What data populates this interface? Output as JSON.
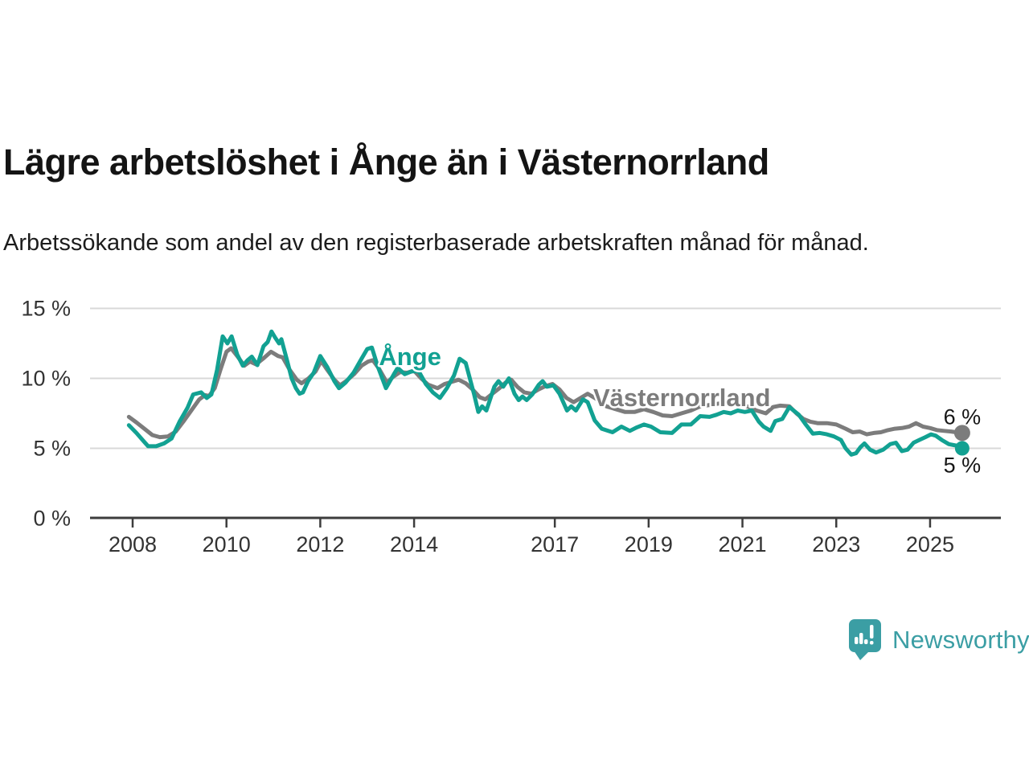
{
  "header": {},
  "footer": {
    "brand": "Newsworthy",
    "brand_color": "#3b9ea4"
  },
  "chart_data": {
    "type": "line",
    "title": "Lägre arbetslöshet i Ånge än i Västernorrland",
    "subtitle": "Arbetssökande som andel av den registerbaserade arbetskraften månad för månad.",
    "xlabel": "",
    "ylabel": "",
    "unit": "%",
    "grid": "horizontal",
    "legend_position": "inline-labels",
    "xlim": [
      2007.1,
      2026.5
    ],
    "ylim": [
      0,
      15
    ],
    "x_ticks": [
      {
        "value": 2008,
        "label": "2008"
      },
      {
        "value": 2010,
        "label": "2010"
      },
      {
        "value": 2012,
        "label": "2012"
      },
      {
        "value": 2014,
        "label": "2014"
      },
      {
        "value": 2017,
        "label": "2017"
      },
      {
        "value": 2019,
        "label": "2019"
      },
      {
        "value": 2021,
        "label": "2021"
      },
      {
        "value": 2023,
        "label": "2023"
      },
      {
        "value": 2025,
        "label": "2025"
      }
    ],
    "y_ticks": [
      {
        "value": 0,
        "label": "0 %"
      },
      {
        "value": 5,
        "label": "5 %"
      },
      {
        "value": 10,
        "label": "10 %"
      },
      {
        "value": 15,
        "label": "15 %"
      }
    ],
    "series": [
      {
        "name": "Ånge",
        "color": "#12a192",
        "line_width": 5,
        "end_dot": true,
        "end_dot_radius": 9,
        "label": {
          "text": "Ånge",
          "x": 2013.25,
          "y": 11.55,
          "anchor": "start"
        },
        "end_label": {
          "text": "5 %",
          "dy": 21
        },
        "points": [
          [
            2007.92,
            6.65
          ],
          [
            2008.08,
            6.1
          ],
          [
            2008.25,
            5.45
          ],
          [
            2008.33,
            5.15
          ],
          [
            2008.5,
            5.15
          ],
          [
            2008.67,
            5.35
          ],
          [
            2008.83,
            5.7
          ],
          [
            2009.0,
            6.9
          ],
          [
            2009.17,
            7.9
          ],
          [
            2009.29,
            8.85
          ],
          [
            2009.46,
            9.0
          ],
          [
            2009.58,
            8.6
          ],
          [
            2009.68,
            8.85
          ],
          [
            2009.8,
            10.6
          ],
          [
            2009.92,
            13.0
          ],
          [
            2010.02,
            12.5
          ],
          [
            2010.11,
            13.0
          ],
          [
            2010.23,
            11.7
          ],
          [
            2010.35,
            10.9
          ],
          [
            2010.45,
            11.3
          ],
          [
            2010.54,
            11.55
          ],
          [
            2010.66,
            10.95
          ],
          [
            2010.79,
            12.3
          ],
          [
            2010.88,
            12.6
          ],
          [
            2010.96,
            13.35
          ],
          [
            2011.04,
            12.9
          ],
          [
            2011.12,
            12.5
          ],
          [
            2011.17,
            12.8
          ],
          [
            2011.29,
            11.3
          ],
          [
            2011.39,
            10.0
          ],
          [
            2011.48,
            9.3
          ],
          [
            2011.56,
            8.9
          ],
          [
            2011.63,
            9.0
          ],
          [
            2011.74,
            9.8
          ],
          [
            2011.86,
            10.4
          ],
          [
            2012.0,
            11.6
          ],
          [
            2012.15,
            10.8
          ],
          [
            2012.3,
            9.8
          ],
          [
            2012.4,
            9.3
          ],
          [
            2012.54,
            9.7
          ],
          [
            2012.71,
            10.4
          ],
          [
            2012.88,
            11.4
          ],
          [
            2013.0,
            12.1
          ],
          [
            2013.1,
            12.2
          ],
          [
            2013.22,
            10.9
          ],
          [
            2013.4,
            9.3
          ],
          [
            2013.57,
            10.3
          ],
          [
            2013.65,
            10.75
          ],
          [
            2013.8,
            10.3
          ],
          [
            2013.95,
            10.5
          ],
          [
            2014.1,
            10.5
          ],
          [
            2014.25,
            9.6
          ],
          [
            2014.4,
            9.0
          ],
          [
            2014.55,
            8.6
          ],
          [
            2014.7,
            9.3
          ],
          [
            2014.85,
            10.2
          ],
          [
            2014.97,
            11.4
          ],
          [
            2015.1,
            11.1
          ],
          [
            2015.28,
            8.85
          ],
          [
            2015.37,
            7.6
          ],
          [
            2015.45,
            8.0
          ],
          [
            2015.54,
            7.7
          ],
          [
            2015.71,
            9.4
          ],
          [
            2015.8,
            9.8
          ],
          [
            2015.9,
            9.4
          ],
          [
            2016.02,
            10.0
          ],
          [
            2016.14,
            8.9
          ],
          [
            2016.23,
            8.45
          ],
          [
            2016.31,
            8.7
          ],
          [
            2016.4,
            8.45
          ],
          [
            2016.52,
            8.85
          ],
          [
            2016.66,
            9.55
          ],
          [
            2016.74,
            9.8
          ],
          [
            2016.83,
            9.4
          ],
          [
            2016.97,
            9.5
          ],
          [
            2017.1,
            8.9
          ],
          [
            2017.26,
            7.7
          ],
          [
            2017.35,
            8.0
          ],
          [
            2017.45,
            7.7
          ],
          [
            2017.6,
            8.5
          ],
          [
            2017.7,
            8.3
          ],
          [
            2017.85,
            7.0
          ],
          [
            2018.0,
            6.4
          ],
          [
            2018.23,
            6.15
          ],
          [
            2018.42,
            6.55
          ],
          [
            2018.6,
            6.25
          ],
          [
            2018.75,
            6.5
          ],
          [
            2018.9,
            6.7
          ],
          [
            2019.05,
            6.55
          ],
          [
            2019.25,
            6.15
          ],
          [
            2019.5,
            6.1
          ],
          [
            2019.7,
            6.7
          ],
          [
            2019.9,
            6.7
          ],
          [
            2020.1,
            7.3
          ],
          [
            2020.3,
            7.25
          ],
          [
            2020.45,
            7.4
          ],
          [
            2020.6,
            7.6
          ],
          [
            2020.75,
            7.5
          ],
          [
            2020.9,
            7.7
          ],
          [
            2021.05,
            7.6
          ],
          [
            2021.2,
            7.7
          ],
          [
            2021.35,
            6.9
          ],
          [
            2021.45,
            6.55
          ],
          [
            2021.6,
            6.25
          ],
          [
            2021.7,
            6.95
          ],
          [
            2021.85,
            7.1
          ],
          [
            2022.0,
            7.95
          ],
          [
            2022.2,
            7.4
          ],
          [
            2022.35,
            6.7
          ],
          [
            2022.5,
            6.05
          ],
          [
            2022.65,
            6.1
          ],
          [
            2022.8,
            6.0
          ],
          [
            2022.95,
            5.85
          ],
          [
            2023.1,
            5.6
          ],
          [
            2023.2,
            5.0
          ],
          [
            2023.32,
            4.55
          ],
          [
            2023.42,
            4.65
          ],
          [
            2023.52,
            5.1
          ],
          [
            2023.6,
            5.35
          ],
          [
            2023.72,
            4.9
          ],
          [
            2023.85,
            4.7
          ],
          [
            2024.0,
            4.9
          ],
          [
            2024.15,
            5.3
          ],
          [
            2024.27,
            5.4
          ],
          [
            2024.4,
            4.8
          ],
          [
            2024.52,
            4.9
          ],
          [
            2024.65,
            5.4
          ],
          [
            2024.77,
            5.6
          ],
          [
            2024.9,
            5.8
          ],
          [
            2025.02,
            6.0
          ],
          [
            2025.12,
            5.9
          ],
          [
            2025.25,
            5.6
          ],
          [
            2025.4,
            5.3
          ],
          [
            2025.55,
            5.2
          ],
          [
            2025.65,
            5.0
          ]
        ]
      },
      {
        "name": "Västernorrland",
        "color": "#7c7c7c",
        "line_width": 5,
        "end_dot": true,
        "end_dot_radius": 10,
        "label": {
          "text": "Västernorrland",
          "x": 2017.82,
          "y": 8.62,
          "anchor": "start"
        },
        "end_label": {
          "text": "6 %",
          "dy": -20
        },
        "points": [
          [
            2007.92,
            7.25
          ],
          [
            2008.08,
            6.85
          ],
          [
            2008.25,
            6.4
          ],
          [
            2008.42,
            5.95
          ],
          [
            2008.58,
            5.8
          ],
          [
            2008.75,
            5.85
          ],
          [
            2008.92,
            6.2
          ],
          [
            2009.08,
            6.9
          ],
          [
            2009.25,
            7.7
          ],
          [
            2009.42,
            8.5
          ],
          [
            2009.54,
            8.8
          ],
          [
            2009.63,
            8.75
          ],
          [
            2009.75,
            9.3
          ],
          [
            2009.87,
            10.6
          ],
          [
            2010.0,
            11.9
          ],
          [
            2010.1,
            12.15
          ],
          [
            2010.25,
            11.5
          ],
          [
            2010.38,
            10.9
          ],
          [
            2010.5,
            11.2
          ],
          [
            2010.63,
            11.0
          ],
          [
            2010.78,
            11.4
          ],
          [
            2010.95,
            11.9
          ],
          [
            2011.1,
            11.6
          ],
          [
            2011.2,
            11.5
          ],
          [
            2011.35,
            10.6
          ],
          [
            2011.5,
            9.9
          ],
          [
            2011.6,
            9.65
          ],
          [
            2011.75,
            10.0
          ],
          [
            2011.9,
            10.5
          ],
          [
            2012.02,
            11.25
          ],
          [
            2012.15,
            10.6
          ],
          [
            2012.3,
            9.9
          ],
          [
            2012.42,
            9.5
          ],
          [
            2012.55,
            9.8
          ],
          [
            2012.72,
            10.3
          ],
          [
            2012.88,
            10.9
          ],
          [
            2013.02,
            11.2
          ],
          [
            2013.12,
            11.3
          ],
          [
            2013.25,
            10.7
          ],
          [
            2013.42,
            9.7
          ],
          [
            2013.55,
            10.1
          ],
          [
            2013.7,
            10.45
          ],
          [
            2013.85,
            10.4
          ],
          [
            2014.0,
            10.55
          ],
          [
            2014.15,
            10.0
          ],
          [
            2014.3,
            9.55
          ],
          [
            2014.5,
            9.3
          ],
          [
            2014.65,
            9.6
          ],
          [
            2014.8,
            9.75
          ],
          [
            2014.95,
            9.9
          ],
          [
            2015.1,
            9.65
          ],
          [
            2015.25,
            9.2
          ],
          [
            2015.4,
            8.65
          ],
          [
            2015.52,
            8.5
          ],
          [
            2015.67,
            8.9
          ],
          [
            2015.82,
            9.3
          ],
          [
            2015.95,
            9.7
          ],
          [
            2016.07,
            9.9
          ],
          [
            2016.2,
            9.4
          ],
          [
            2016.35,
            9.0
          ],
          [
            2016.5,
            8.9
          ],
          [
            2016.65,
            9.2
          ],
          [
            2016.8,
            9.45
          ],
          [
            2016.95,
            9.6
          ],
          [
            2017.1,
            9.2
          ],
          [
            2017.25,
            8.6
          ],
          [
            2017.4,
            8.3
          ],
          [
            2017.55,
            8.6
          ],
          [
            2017.7,
            8.9
          ],
          [
            2017.9,
            8.5
          ],
          [
            2018.1,
            8.0
          ],
          [
            2018.3,
            7.8
          ],
          [
            2018.5,
            7.6
          ],
          [
            2018.7,
            7.6
          ],
          [
            2018.9,
            7.8
          ],
          [
            2019.1,
            7.6
          ],
          [
            2019.3,
            7.35
          ],
          [
            2019.5,
            7.3
          ],
          [
            2019.7,
            7.5
          ],
          [
            2019.9,
            7.7
          ],
          [
            2020.1,
            8.0
          ],
          [
            2020.3,
            8.1
          ],
          [
            2020.5,
            8.2
          ],
          [
            2020.7,
            8.2
          ],
          [
            2020.9,
            8.1
          ],
          [
            2021.1,
            8.0
          ],
          [
            2021.3,
            7.7
          ],
          [
            2021.5,
            7.5
          ],
          [
            2021.65,
            7.95
          ],
          [
            2021.8,
            8.05
          ],
          [
            2022.0,
            8.0
          ],
          [
            2022.15,
            7.5
          ],
          [
            2022.3,
            7.1
          ],
          [
            2022.45,
            6.9
          ],
          [
            2022.6,
            6.8
          ],
          [
            2022.8,
            6.8
          ],
          [
            2023.0,
            6.7
          ],
          [
            2023.2,
            6.4
          ],
          [
            2023.35,
            6.15
          ],
          [
            2023.5,
            6.2
          ],
          [
            2023.65,
            6.0
          ],
          [
            2023.8,
            6.1
          ],
          [
            2023.95,
            6.15
          ],
          [
            2024.1,
            6.3
          ],
          [
            2024.25,
            6.4
          ],
          [
            2024.4,
            6.45
          ],
          [
            2024.55,
            6.55
          ],
          [
            2024.7,
            6.8
          ],
          [
            2024.85,
            6.55
          ],
          [
            2025.0,
            6.45
          ],
          [
            2025.15,
            6.3
          ],
          [
            2025.3,
            6.25
          ],
          [
            2025.45,
            6.2
          ],
          [
            2025.65,
            6.1
          ]
        ]
      }
    ]
  }
}
